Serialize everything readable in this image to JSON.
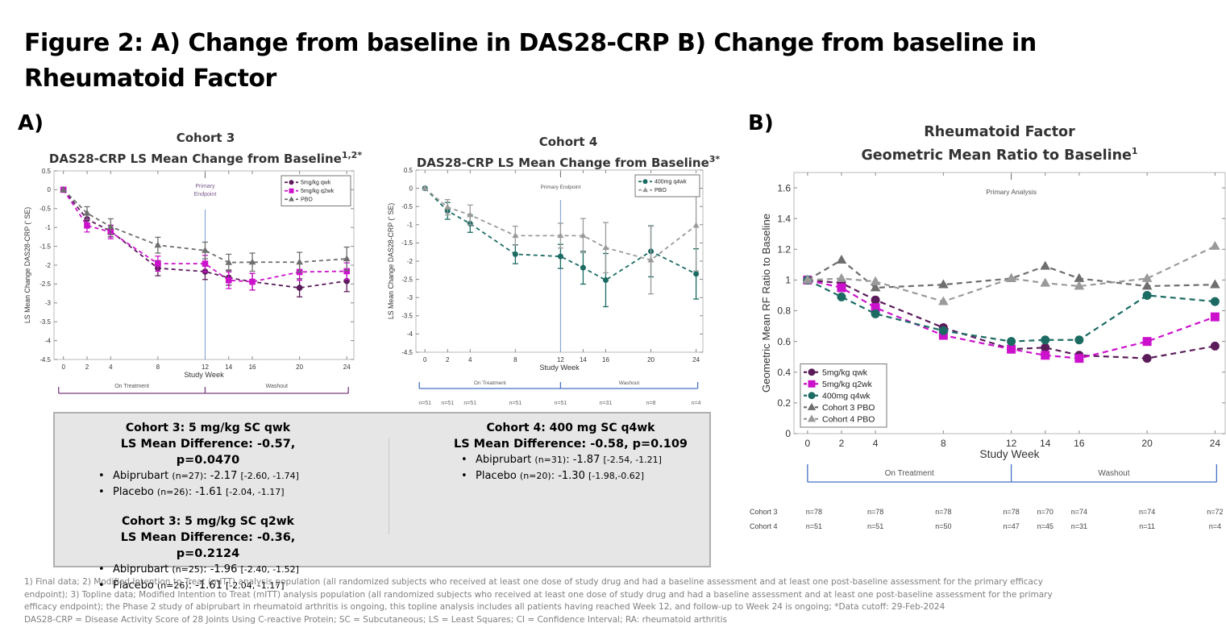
{
  "figure_title": "Figure 2: A) Change from baseline in DAS28-CRP B) Change from baseline in Rheumatoid Factor",
  "panel_a_label": "A)",
  "panel_b_label": "B)",
  "chart_data": [
    {
      "id": "cohort3",
      "type": "line",
      "title_line1": "Cohort 3",
      "title_line2": "DAS28-CRP LS Mean Change from Baseline",
      "title_sup": "1,2*",
      "xlabel": "Study Week",
      "ylabel": "LS Mean Change DAS28-CRP (' SE)",
      "x": [
        0,
        2,
        4,
        8,
        12,
        14,
        16,
        20,
        24
      ],
      "xticks": [
        "0",
        "2",
        "4",
        "8",
        "12",
        "14",
        "16",
        "20",
        "24"
      ],
      "ylim": [
        -4.5,
        0.5
      ],
      "yticks": [
        "0.5",
        "0",
        "-0.5",
        "-1",
        "-1.5",
        "-2",
        "-2.5",
        "-3",
        "-3.5",
        "-4",
        "-4.5"
      ],
      "ytick_values": [
        0.5,
        0,
        -0.5,
        -1,
        -1.5,
        -2,
        -2.5,
        -3,
        -3.5,
        -4,
        -4.5
      ],
      "vline": {
        "x": 12,
        "label_line1": "Primary",
        "label_line2": "Endpoint"
      },
      "legend_position": "top-right",
      "series": [
        {
          "name": "5mg/kg qwk",
          "color": "#5b1a5a",
          "marker": "circle",
          "values": [
            0,
            -0.78,
            -1.1,
            -2.08,
            -2.17,
            -2.33,
            -2.44,
            -2.6,
            -2.42
          ],
          "se": [
            0,
            0.12,
            0.15,
            0.2,
            0.21,
            0.2,
            0.22,
            0.24,
            0.28
          ]
        },
        {
          "name": "5mg/kg q2wk",
          "color": "#cc11cc",
          "marker": "square",
          "values": [
            0,
            -0.95,
            -1.12,
            -1.96,
            -1.96,
            -2.4,
            -2.44,
            -2.18,
            -2.16
          ],
          "se": [
            0,
            0.17,
            0.18,
            0.2,
            0.22,
            0.22,
            0.22,
            0.22,
            0.22
          ]
        },
        {
          "name": "PBO",
          "color": "#6e6e6e",
          "marker": "triangle",
          "values": [
            0,
            -0.62,
            -0.98,
            -1.47,
            -1.61,
            -1.93,
            -1.92,
            -1.92,
            -1.83
          ],
          "se": [
            0,
            0.17,
            0.21,
            0.21,
            0.22,
            0.22,
            0.24,
            0.26,
            0.31
          ]
        }
      ],
      "period_labels": [
        "On Treatment",
        "Washout"
      ],
      "period_color": "#7b3f7b"
    },
    {
      "id": "cohort4",
      "type": "line",
      "title_line1": "Cohort 4",
      "title_line2": "DAS28-CRP LS Mean Change from Baseline",
      "title_sup": "3*",
      "xlabel": "Study Week",
      "ylabel": "LS Mean Change DAS28-CRP (' SE)",
      "x": [
        0,
        2,
        4,
        8,
        12,
        14,
        16,
        20,
        24
      ],
      "xticks": [
        "0",
        "2",
        "4",
        "8",
        "12",
        "14",
        "16",
        "20",
        "24"
      ],
      "ylim": [
        -4.5,
        0.5
      ],
      "yticks": [
        "0.5",
        "0",
        "-0.5",
        "-1",
        "-1.5",
        "-2",
        "-2.5",
        "-3",
        "-3.5",
        "-4",
        "-4.5"
      ],
      "ytick_values": [
        0.5,
        0,
        -0.5,
        -1,
        -1.5,
        -2,
        -2.5,
        -3,
        -3.5,
        -4,
        -4.5
      ],
      "vline": {
        "x": 12,
        "label_line1": "Primary Endpoint",
        "label_line2": ""
      },
      "legend_position": "top-right",
      "series": [
        {
          "name": "400mg q4wk",
          "color": "#1b6b63",
          "marker": "circle",
          "values": [
            0,
            -0.62,
            -0.97,
            -1.81,
            -1.87,
            -2.18,
            -2.52,
            -1.73,
            -2.35
          ],
          "se": [
            0,
            0.23,
            0.24,
            0.26,
            0.33,
            0.45,
            0.73,
            0.7,
            0.69
          ]
        },
        {
          "name": "PBO",
          "color": "#9a9a9a",
          "marker": "triangle",
          "values": [
            0,
            -0.52,
            -0.73,
            -1.3,
            -1.3,
            -1.3,
            -1.63,
            -1.97,
            -1.02
          ],
          "se": [
            0,
            0.21,
            0.27,
            0.26,
            0.34,
            0.47,
            0.69,
            0.93,
            1.25
          ]
        }
      ],
      "period_labels": [
        "On Treatment",
        "Washout"
      ],
      "period_color": "#4472c4",
      "n_counts": [
        "n=51",
        "n=51",
        "n=51",
        "n=51",
        "n=51",
        "n=31",
        "n=8",
        "n=4"
      ],
      "n_weeks": [
        0,
        2,
        4,
        8,
        12,
        16,
        20,
        24
      ]
    },
    {
      "id": "rf",
      "type": "line",
      "title_line1": "Rheumatoid Factor",
      "title_line2": "Geometric Mean Ratio to Baseline",
      "title_sup": "1",
      "xlabel": "Study Week",
      "ylabel": "Geometric Mean RF Ratio to Baseline",
      "x": [
        0,
        2,
        4,
        8,
        12,
        14,
        16,
        20,
        24
      ],
      "xticks": [
        "0",
        "2",
        "4",
        "8",
        "12",
        "14",
        "16",
        "20",
        "24"
      ],
      "ylim": [
        0,
        1.7
      ],
      "yticks": [
        "0",
        "0.2",
        "0.4",
        "0.6",
        "0.8",
        "1",
        "1.2",
        "1.4",
        "1.6"
      ],
      "ytick_values": [
        0,
        0.2,
        0.4,
        0.6,
        0.8,
        1,
        1.2,
        1.4,
        1.6
      ],
      "vline": {
        "x": 12,
        "label_line1": "Primary Analysis",
        "label_line2": ""
      },
      "legend_position": "bottom-left",
      "series": [
        {
          "name": "5mg/kg qwk",
          "color": "#5b1a5a",
          "marker": "circle",
          "values": [
            1.0,
            0.98,
            0.87,
            0.69,
            0.55,
            0.56,
            0.51,
            0.49,
            0.57
          ]
        },
        {
          "name": "5mg/kg q2wk",
          "color": "#cc11cc",
          "marker": "square",
          "values": [
            1.0,
            0.95,
            0.82,
            0.64,
            0.55,
            0.51,
            0.49,
            0.6,
            0.76
          ]
        },
        {
          "name": "400mg q4wk",
          "color": "#1b6b63",
          "marker": "circle",
          "values": [
            1.0,
            0.89,
            0.78,
            0.67,
            0.6,
            0.61,
            0.61,
            0.9,
            0.86
          ]
        },
        {
          "name": "Cohort 3 PBO",
          "color": "#6e6e6e",
          "marker": "triangle",
          "values": [
            1.0,
            1.13,
            0.95,
            0.97,
            1.01,
            1.09,
            1.01,
            0.96,
            0.97
          ]
        },
        {
          "name": "Cohort 4 PBO",
          "color": "#9a9a9a",
          "marker": "triangle",
          "values": [
            1.0,
            1.01,
            0.99,
            0.86,
            1.01,
            0.98,
            0.96,
            1.01,
            1.22
          ]
        }
      ],
      "period_labels": [
        "On Treatment",
        "Washout"
      ],
      "period_color": "#4472c4",
      "n_table": {
        "rows": [
          {
            "label": "Cohort 3",
            "counts": [
              "n=78",
              "n=78",
              "n=78",
              "n=78",
              "n=70",
              "n=74",
              "n=74",
              "n=72"
            ]
          },
          {
            "label": "Cohort 4",
            "counts": [
              "n=51",
              "n=51",
              "n=50",
              "n=47",
              "n=45",
              "n=31",
              "n=11",
              "n=4"
            ]
          }
        ],
        "weeks": [
          0,
          4,
          8,
          12,
          14,
          16,
          20,
          24
        ]
      }
    }
  ],
  "summary": {
    "left": [
      {
        "heading": "Cohort 3: 5 mg/kg SC qwk",
        "difference": "LS Mean Difference: -0.57, p=0.0470",
        "bullets": [
          {
            "arm": "Abiprubart",
            "n": "(n=27)",
            "value": ": -2.17 ",
            "ci": "[-2.60, -1.74]"
          },
          {
            "arm": "Placebo",
            "n": "(n=26)",
            "value": ": -1.61 ",
            "ci": "[-2.04, -1.17]"
          }
        ]
      },
      {
        "heading": "Cohort 3: 5 mg/kg SC q2wk",
        "difference": "LS Mean Difference: -0.36, p=0.2124",
        "bullets": [
          {
            "arm": "Abiprubart",
            "n": "(n=25)",
            "value": ": -1.96 ",
            "ci": "[-2.40, -1.52]"
          },
          {
            "arm": "Placebo",
            "n": "(n=26)",
            "value": ": -1.61 ",
            "ci": "[-2.04, -1.17]"
          }
        ]
      }
    ],
    "right": [
      {
        "heading": "Cohort 4: 400 mg SC q4wk",
        "difference": "LS Mean Difference: -0.58, p=0.109",
        "bullets": [
          {
            "arm": "Abiprubart",
            "n": "(n=31)",
            "value": ": -1.87 ",
            "ci": "[-2.54, -1.21]"
          },
          {
            "arm": "Placebo",
            "n": "(n=20)",
            "value": ": -1.30 ",
            "ci": "[-1.98,-0.62]"
          }
        ]
      }
    ],
    "bullet_glyph": "•"
  },
  "footnotes": [
    "1) Final data; 2) Modified Intention to Treat (mITT) analysis population (all randomized subjects who received at least one dose of study drug and had a baseline assessment and at least one post-baseline assessment for the primary efficacy",
    "endpoint); 3) Topline data; Modified Intention to Treat (mITT) analysis population (all randomized subjects who received at least one dose of study drug and had a baseline assessment and at least one post-baseline assessment for the primary",
    "efficacy endpoint); the Phase 2 study of abiprubart in rheumatoid arthritis is ongoing, this topline analysis includes all patients having reached Week 12, and follow-up to Week 24 is ongoing; *Data cutoff: 29-Feb-2024",
    "DAS28-CRP = Disease Activity Score of 28 Joints Using C-reactive Protein; SC = Subcutaneous; LS = Least Squares; CI = Confidence Interval; RA: rheumatoid arthritis"
  ]
}
